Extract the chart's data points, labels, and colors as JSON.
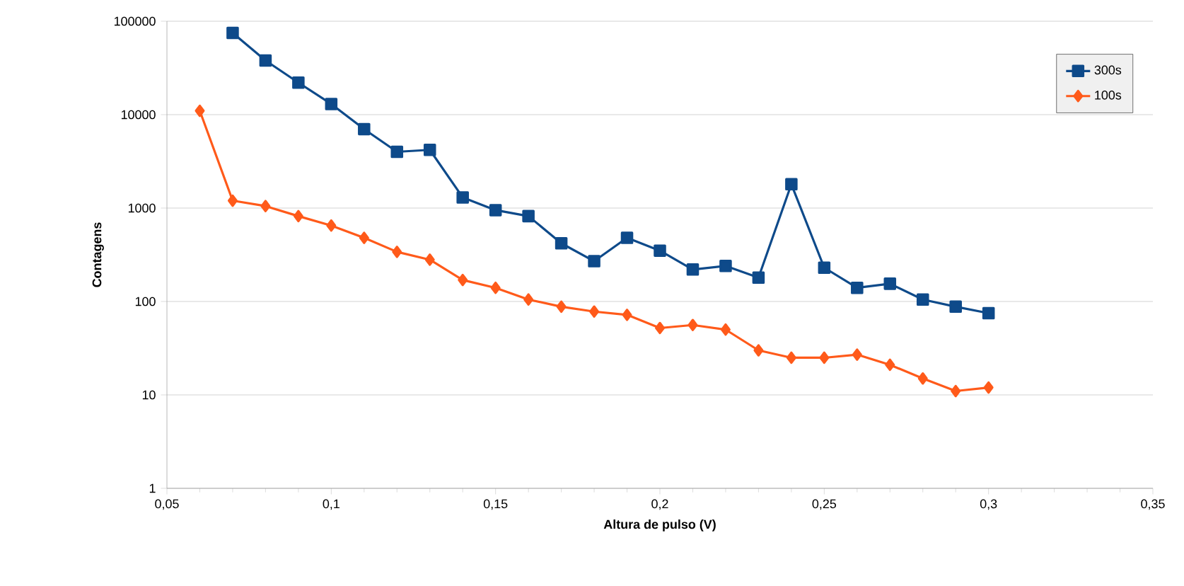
{
  "chart_data": {
    "type": "line",
    "xlabel": "Altura de pulso (V)",
    "ylabel": "Contagens",
    "x": [
      0.06,
      0.07,
      0.08,
      0.09,
      0.1,
      0.11,
      0.12,
      0.13,
      0.14,
      0.15,
      0.16,
      0.17,
      0.18,
      0.19,
      0.2,
      0.21,
      0.22,
      0.23,
      0.24,
      0.25,
      0.26,
      0.27,
      0.28,
      0.29,
      0.3
    ],
    "series": [
      {
        "name": "300s",
        "color": "#0e4a8a",
        "marker": "square",
        "values": [
          null,
          75000,
          38000,
          22000,
          13000,
          7000,
          4000,
          4200,
          1300,
          950,
          820,
          420,
          270,
          480,
          350,
          220,
          240,
          180,
          1800,
          230,
          140,
          155,
          105,
          88,
          75
        ]
      },
      {
        "name": "100s",
        "color": "#ff5a1a",
        "marker": "diamond",
        "values": [
          11000,
          1200,
          1050,
          820,
          650,
          480,
          340,
          280,
          170,
          140,
          105,
          88,
          78,
          72,
          52,
          56,
          50,
          30,
          25,
          25,
          27,
          21,
          15,
          11,
          12
        ]
      }
    ],
    "log": "y",
    "grid": "y",
    "legend": "top right",
    "xlim": [
      0.05,
      0.35
    ],
    "xticks": [
      {
        "value": 0.05,
        "label": "0,05"
      },
      {
        "value": 0.1,
        "label": "0,1"
      },
      {
        "value": 0.15,
        "label": "0,15"
      },
      {
        "value": 0.2,
        "label": "0,2"
      },
      {
        "value": 0.25,
        "label": "0,25"
      },
      {
        "value": 0.3,
        "label": "0,3"
      },
      {
        "value": 0.35,
        "label": "0,35"
      }
    ],
    "ylim": [
      1,
      100000
    ],
    "yticks": [
      1,
      10,
      100,
      1000,
      10000,
      100000
    ]
  }
}
